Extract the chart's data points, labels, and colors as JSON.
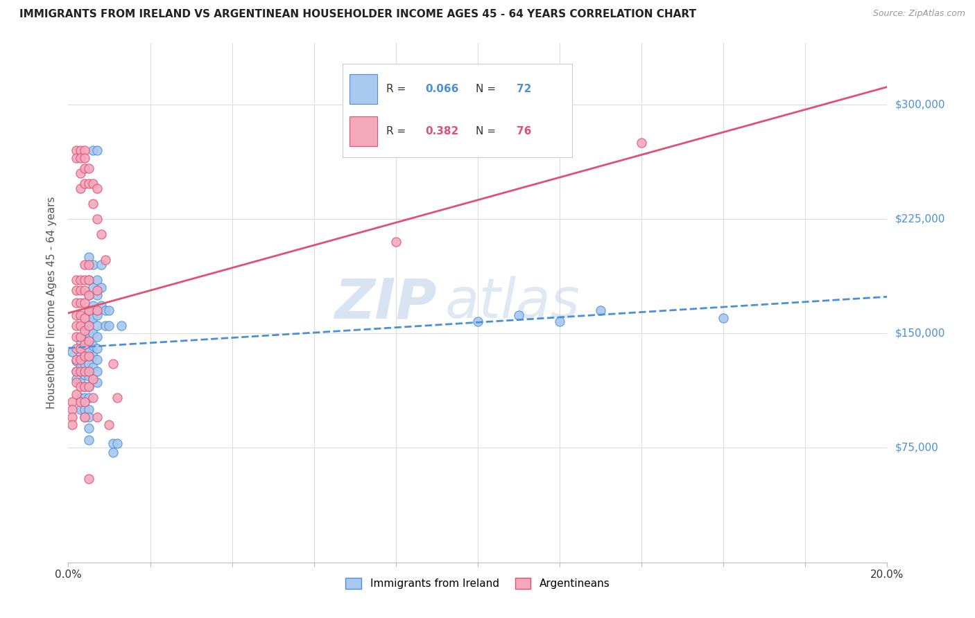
{
  "title": "IMMIGRANTS FROM IRELAND VS ARGENTINEAN HOUSEHOLDER INCOME AGES 45 - 64 YEARS CORRELATION CHART",
  "source": "Source: ZipAtlas.com",
  "ylabel": "Householder Income Ages 45 - 64 years",
  "legend_label1": "Immigrants from Ireland",
  "legend_label2": "Argentineans",
  "R1": 0.066,
  "N1": 72,
  "R2": 0.382,
  "N2": 76,
  "xlim": [
    0.0,
    0.2
  ],
  "ylim": [
    0,
    340000
  ],
  "yticks": [
    75000,
    150000,
    225000,
    300000
  ],
  "ytick_labels": [
    "$75,000",
    "$150,000",
    "$225,000",
    "$300,000"
  ],
  "color1": "#A8C8F0",
  "color2": "#F4A8BC",
  "line1_color": "#4A90D9",
  "line2_color": "#E05070",
  "watermark_text": "ZIP",
  "watermark_text2": "atlas",
  "ireland_scatter": [
    [
      0.001,
      138000
    ],
    [
      0.002,
      125000
    ],
    [
      0.002,
      132000
    ],
    [
      0.002,
      120000
    ],
    [
      0.003,
      145000
    ],
    [
      0.003,
      136000
    ],
    [
      0.003,
      128000
    ],
    [
      0.003,
      118000
    ],
    [
      0.003,
      108000
    ],
    [
      0.003,
      100000
    ],
    [
      0.004,
      155000
    ],
    [
      0.004,
      148000
    ],
    [
      0.004,
      140000
    ],
    [
      0.004,
      135000
    ],
    [
      0.004,
      130000
    ],
    [
      0.004,
      123000
    ],
    [
      0.004,
      115000
    ],
    [
      0.004,
      108000
    ],
    [
      0.004,
      100000
    ],
    [
      0.004,
      95000
    ],
    [
      0.005,
      200000
    ],
    [
      0.005,
      185000
    ],
    [
      0.005,
      175000
    ],
    [
      0.005,
      165000
    ],
    [
      0.005,
      158000
    ],
    [
      0.005,
      150000
    ],
    [
      0.005,
      143000
    ],
    [
      0.005,
      138000
    ],
    [
      0.005,
      130000
    ],
    [
      0.005,
      122000
    ],
    [
      0.005,
      115000
    ],
    [
      0.005,
      108000
    ],
    [
      0.005,
      100000
    ],
    [
      0.005,
      95000
    ],
    [
      0.005,
      88000
    ],
    [
      0.005,
      80000
    ],
    [
      0.006,
      270000
    ],
    [
      0.006,
      195000
    ],
    [
      0.006,
      180000
    ],
    [
      0.006,
      168000
    ],
    [
      0.006,
      160000
    ],
    [
      0.006,
      150000
    ],
    [
      0.006,
      142000
    ],
    [
      0.006,
      135000
    ],
    [
      0.006,
      128000
    ],
    [
      0.006,
      120000
    ],
    [
      0.007,
      270000
    ],
    [
      0.007,
      185000
    ],
    [
      0.007,
      175000
    ],
    [
      0.007,
      162000
    ],
    [
      0.007,
      155000
    ],
    [
      0.007,
      148000
    ],
    [
      0.007,
      140000
    ],
    [
      0.007,
      133000
    ],
    [
      0.007,
      125000
    ],
    [
      0.007,
      118000
    ],
    [
      0.008,
      195000
    ],
    [
      0.008,
      180000
    ],
    [
      0.008,
      168000
    ],
    [
      0.009,
      165000
    ],
    [
      0.009,
      155000
    ],
    [
      0.01,
      165000
    ],
    [
      0.01,
      155000
    ],
    [
      0.011,
      78000
    ],
    [
      0.011,
      72000
    ],
    [
      0.012,
      78000
    ],
    [
      0.013,
      155000
    ],
    [
      0.1,
      158000
    ],
    [
      0.11,
      162000
    ],
    [
      0.12,
      158000
    ],
    [
      0.13,
      165000
    ],
    [
      0.16,
      160000
    ]
  ],
  "argentina_scatter": [
    [
      0.001,
      105000
    ],
    [
      0.001,
      100000
    ],
    [
      0.001,
      95000
    ],
    [
      0.001,
      90000
    ],
    [
      0.002,
      270000
    ],
    [
      0.002,
      265000
    ],
    [
      0.002,
      185000
    ],
    [
      0.002,
      178000
    ],
    [
      0.002,
      170000
    ],
    [
      0.002,
      162000
    ],
    [
      0.002,
      155000
    ],
    [
      0.002,
      148000
    ],
    [
      0.002,
      140000
    ],
    [
      0.002,
      133000
    ],
    [
      0.002,
      125000
    ],
    [
      0.002,
      118000
    ],
    [
      0.002,
      110000
    ],
    [
      0.003,
      270000
    ],
    [
      0.003,
      265000
    ],
    [
      0.003,
      255000
    ],
    [
      0.003,
      245000
    ],
    [
      0.003,
      185000
    ],
    [
      0.003,
      178000
    ],
    [
      0.003,
      170000
    ],
    [
      0.003,
      162000
    ],
    [
      0.003,
      155000
    ],
    [
      0.003,
      148000
    ],
    [
      0.003,
      140000
    ],
    [
      0.003,
      133000
    ],
    [
      0.003,
      125000
    ],
    [
      0.003,
      115000
    ],
    [
      0.003,
      105000
    ],
    [
      0.004,
      270000
    ],
    [
      0.004,
      265000
    ],
    [
      0.004,
      258000
    ],
    [
      0.004,
      248000
    ],
    [
      0.004,
      195000
    ],
    [
      0.004,
      185000
    ],
    [
      0.004,
      178000
    ],
    [
      0.004,
      170000
    ],
    [
      0.004,
      160000
    ],
    [
      0.004,
      152000
    ],
    [
      0.004,
      143000
    ],
    [
      0.004,
      135000
    ],
    [
      0.004,
      125000
    ],
    [
      0.004,
      115000
    ],
    [
      0.004,
      105000
    ],
    [
      0.004,
      95000
    ],
    [
      0.005,
      258000
    ],
    [
      0.005,
      248000
    ],
    [
      0.005,
      195000
    ],
    [
      0.005,
      185000
    ],
    [
      0.005,
      175000
    ],
    [
      0.005,
      165000
    ],
    [
      0.005,
      155000
    ],
    [
      0.005,
      145000
    ],
    [
      0.005,
      135000
    ],
    [
      0.005,
      125000
    ],
    [
      0.005,
      115000
    ],
    [
      0.005,
      55000
    ],
    [
      0.006,
      248000
    ],
    [
      0.006,
      235000
    ],
    [
      0.006,
      120000
    ],
    [
      0.006,
      108000
    ],
    [
      0.007,
      245000
    ],
    [
      0.007,
      225000
    ],
    [
      0.007,
      178000
    ],
    [
      0.007,
      165000
    ],
    [
      0.007,
      95000
    ],
    [
      0.008,
      215000
    ],
    [
      0.009,
      198000
    ],
    [
      0.01,
      90000
    ],
    [
      0.011,
      130000
    ],
    [
      0.012,
      108000
    ],
    [
      0.08,
      210000
    ],
    [
      0.14,
      275000
    ]
  ]
}
